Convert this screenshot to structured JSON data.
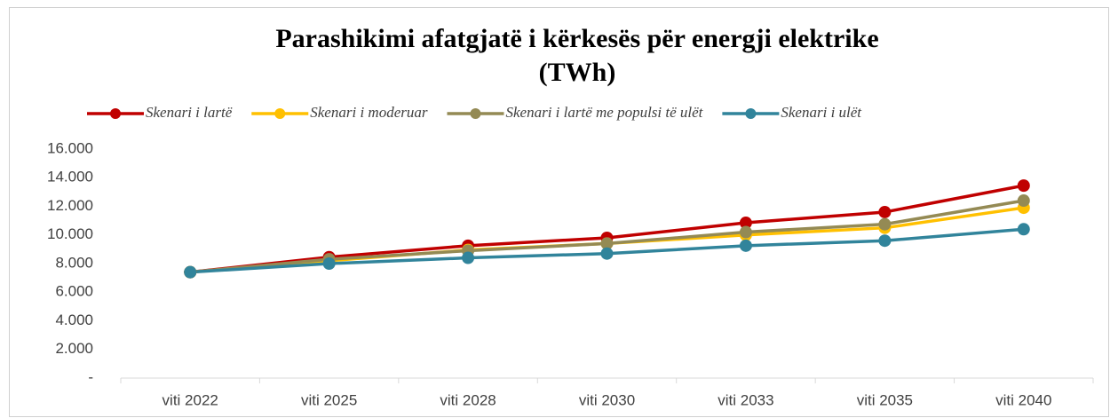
{
  "chart_data": {
    "type": "line",
    "title": [
      "Parashikimi  afatgjatë i kërkesës  për energji elektrike",
      "(TWh)"
    ],
    "categories": [
      "viti 2022",
      "viti 2025",
      "viti 2028",
      "viti 2030",
      "viti 2033",
      "viti 2035",
      "viti 2040"
    ],
    "series": [
      {
        "name": "Skenari i lartë",
        "color": "#c00000",
        "values": [
          7400,
          8450,
          9250,
          9800,
          10850,
          11600,
          13450
        ]
      },
      {
        "name": "Skenari i moderuar",
        "color": "#ffc000",
        "values": [
          7400,
          8200,
          8950,
          9400,
          10000,
          10500,
          11900
        ]
      },
      {
        "name": "Skenari i lartë me populsi të ulët",
        "color": "#948a54",
        "values": [
          7400,
          8300,
          8900,
          9400,
          10200,
          10750,
          12400
        ]
      },
      {
        "name": "Skenari i ulët",
        "color": "#31849b",
        "values": [
          7400,
          8000,
          8400,
          8700,
          9250,
          9600,
          10400
        ]
      }
    ],
    "ylim": [
      0,
      16000
    ],
    "yticks": [
      {
        "value": 0,
        "label": "-"
      },
      {
        "value": 2000,
        "label": "2.000"
      },
      {
        "value": 4000,
        "label": "4.000"
      },
      {
        "value": 6000,
        "label": "6.000"
      },
      {
        "value": 8000,
        "label": "8.000"
      },
      {
        "value": 10000,
        "label": "10.000"
      },
      {
        "value": 12000,
        "label": "12.000"
      },
      {
        "value": 14000,
        "label": "14.000"
      },
      {
        "value": 16000,
        "label": "16.000"
      }
    ],
    "grid": false,
    "legend": "top"
  }
}
